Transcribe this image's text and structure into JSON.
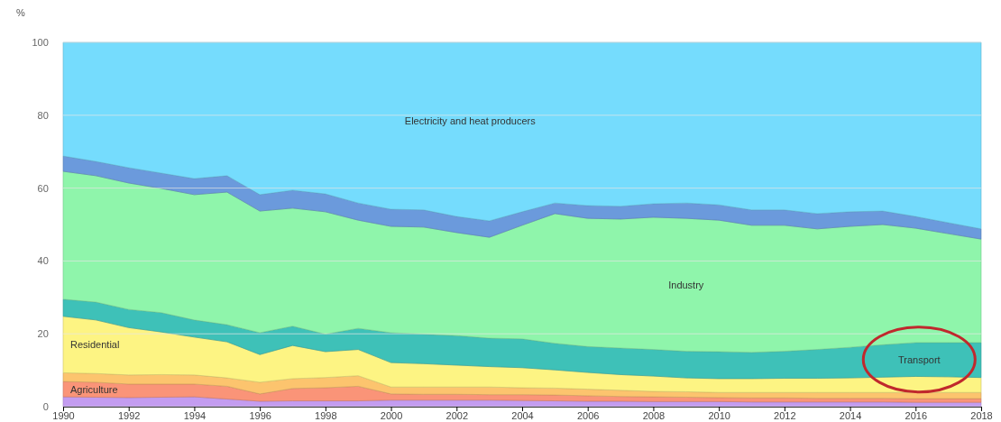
{
  "chart_data": {
    "type": "area",
    "stacked": true,
    "ylabel": "%",
    "x": [
      1990,
      1991,
      1992,
      1993,
      1994,
      1995,
      1996,
      1997,
      1998,
      1999,
      2000,
      2001,
      2002,
      2003,
      2004,
      2005,
      2006,
      2007,
      2008,
      2009,
      2010,
      2011,
      2012,
      2013,
      2014,
      2015,
      2016,
      2017,
      2018
    ],
    "xlim": [
      1990,
      2018
    ],
    "xticks": [
      1990,
      1992,
      1994,
      1996,
      1998,
      2000,
      2002,
      2004,
      2006,
      2008,
      2010,
      2012,
      2014,
      2016,
      2018
    ],
    "ylim": [
      0,
      100
    ],
    "yticks": [
      0,
      20,
      40,
      60,
      80,
      100
    ],
    "grid": "y",
    "series": [
      {
        "color": "#c39cf0",
        "values": [
          2.7,
          2.6,
          2.5,
          2.6,
          2.7,
          2.1,
          1.5,
          1.6,
          1.6,
          1.6,
          1.8,
          1.8,
          1.8,
          1.8,
          1.7,
          1.6,
          1.5,
          1.5,
          1.4,
          1.4,
          1.4,
          1.3,
          1.3,
          1.3,
          1.3,
          1.3,
          1.2,
          1.2,
          1.2
        ]
      },
      {
        "name": "Agriculture",
        "color": "#fa9478",
        "values": [
          4.2,
          4.1,
          3.7,
          3.6,
          3.5,
          3.5,
          2.0,
          3.4,
          3.6,
          4.0,
          1.7,
          1.6,
          1.6,
          1.5,
          1.6,
          1.6,
          1.5,
          1.3,
          1.3,
          1.2,
          1.1,
          1.1,
          1.1,
          1.0,
          1.0,
          1.0,
          1.0,
          1.0,
          1.0
        ]
      },
      {
        "color": "#fcc46e",
        "values": [
          2.4,
          2.4,
          2.5,
          2.6,
          2.5,
          2.3,
          3.2,
          2.7,
          2.8,
          2.9,
          1.9,
          2.0,
          2.0,
          2.1,
          1.9,
          1.9,
          1.8,
          1.7,
          1.5,
          1.5,
          1.4,
          1.5,
          1.5,
          1.6,
          1.6,
          1.6,
          1.7,
          1.7,
          1.7
        ]
      },
      {
        "name": "Residential",
        "color": "#fdf483",
        "values": [
          15.5,
          14.7,
          13.0,
          11.7,
          10.4,
          9.9,
          7.6,
          9.1,
          7.1,
          7.2,
          6.7,
          6.4,
          6.0,
          5.6,
          5.5,
          5.0,
          4.6,
          4.3,
          4.2,
          3.8,
          3.8,
          3.8,
          3.9,
          3.9,
          4.0,
          4.2,
          4.4,
          4.3,
          4.1
        ]
      },
      {
        "name": "Transport",
        "color": "#3ec1b8",
        "values": [
          4.7,
          4.9,
          5.0,
          5.3,
          4.7,
          4.7,
          6.0,
          5.3,
          4.8,
          5.8,
          8.2,
          8.1,
          8.1,
          7.8,
          7.9,
          7.3,
          7.1,
          7.3,
          7.3,
          7.3,
          7.4,
          7.2,
          7.4,
          7.9,
          8.4,
          8.9,
          9.3,
          9.4,
          9.6
        ]
      },
      {
        "name": "Industry",
        "color": "#8ff5ab",
        "values": [
          35.1,
          34.7,
          34.7,
          34.1,
          34.4,
          36.4,
          33.4,
          32.4,
          33.6,
          29.7,
          29.2,
          29.4,
          28.3,
          27.7,
          31.2,
          35.6,
          35.2,
          35.4,
          36.3,
          36.5,
          36.1,
          34.9,
          34.6,
          33.1,
          33.2,
          33.0,
          31.4,
          29.9,
          28.4
        ]
      },
      {
        "color": "#6b9adc",
        "values": [
          4.2,
          3.9,
          4.2,
          4.2,
          4.4,
          4.5,
          4.5,
          4.9,
          4.9,
          4.7,
          4.7,
          4.7,
          4.4,
          4.5,
          3.7,
          2.9,
          3.5,
          3.5,
          3.7,
          4.2,
          4.2,
          4.2,
          4.2,
          4.2,
          4.0,
          3.7,
          3.2,
          3.0,
          2.8
        ]
      },
      {
        "name": "Electricity and heat producers",
        "color": "#75dcfd",
        "values": [
          31.2,
          32.7,
          34.4,
          35.9,
          37.4,
          36.6,
          41.8,
          40.6,
          41.6,
          44.1,
          45.8,
          46.0,
          47.8,
          49.0,
          46.5,
          44.1,
          44.8,
          45.0,
          44.3,
          44.1,
          44.6,
          46.0,
          46.0,
          47.0,
          46.5,
          46.3,
          47.8,
          49.5,
          51.2
        ]
      }
    ]
  }
}
